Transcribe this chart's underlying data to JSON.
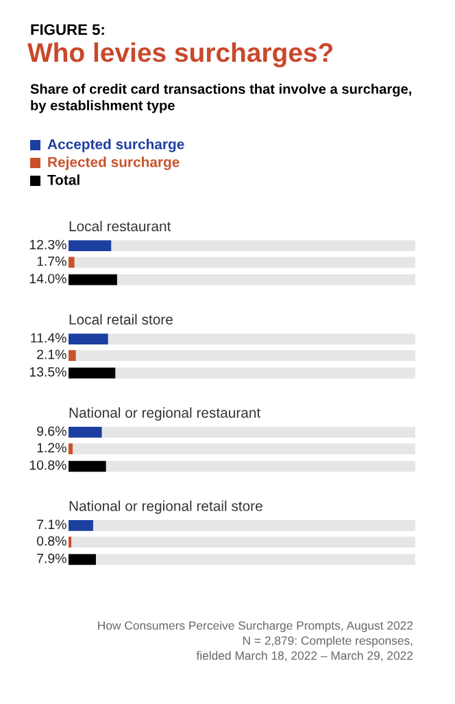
{
  "chart_data": {
    "type": "bar",
    "orientation": "horizontal",
    "title": "Who levies surcharges?",
    "subtitle": "Share of credit card transactions that involve a surcharge, by establishment type",
    "categories": [
      "Local restaurant",
      "Local retail store",
      "National or regional restaurant",
      "National or regional retail store"
    ],
    "series": [
      {
        "name": "Accepted surcharge",
        "color": "#1c3fa0",
        "values": [
          12.3,
          11.4,
          9.6,
          7.1
        ],
        "value_labels": [
          "12.3%",
          "11.4%",
          "9.6%",
          "7.1%"
        ]
      },
      {
        "name": "Rejected surcharge",
        "color": "#c9522b",
        "values": [
          1.7,
          2.1,
          1.2,
          0.8
        ],
        "value_labels": [
          "1.7%",
          "2.1%",
          "1.2%",
          "0.8%"
        ]
      },
      {
        "name": "Total",
        "color": "#000000",
        "values": [
          14.0,
          13.5,
          10.8,
          7.9
        ],
        "value_labels": [
          "14.0%",
          "13.5%",
          "10.8%",
          "7.9%"
        ]
      }
    ],
    "xlim": [
      0,
      100
    ],
    "legend": "top left",
    "annotations": [
      "FIGURE 5:",
      "How Consumers Perceive Surcharge Prompts, August 2022",
      "N = 2,879: Complete responses,\nfielded March 18, 2022 – March 29, 2022"
    ]
  }
}
